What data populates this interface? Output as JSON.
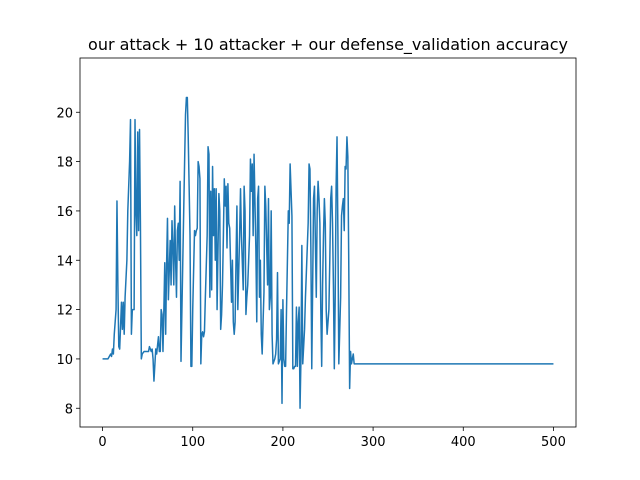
{
  "chart_data": {
    "type": "line",
    "title": "our attack + 10 attacker + our defense_validation accuracy",
    "x": [
      0,
      3,
      6,
      9,
      10,
      11,
      12,
      13,
      15,
      16,
      17,
      18,
      19,
      21,
      22,
      23,
      24,
      25,
      27,
      28,
      30,
      31,
      32,
      33,
      35,
      36,
      37,
      38,
      39,
      40,
      41,
      42,
      43,
      44,
      46,
      49,
      51,
      52,
      54,
      55,
      56,
      57,
      59,
      60,
      62,
      63,
      64,
      65,
      66,
      67,
      68,
      69,
      70,
      71,
      72,
      73,
      75,
      76,
      77,
      78,
      79,
      80,
      81,
      82,
      83,
      84,
      85,
      86,
      87,
      89,
      90,
      91,
      92,
      93,
      94,
      95,
      96,
      97,
      98,
      99,
      100,
      102,
      103,
      104,
      105,
      106,
      107,
      108,
      109,
      110,
      111,
      112,
      113,
      114,
      116,
      117,
      118,
      119,
      120,
      121,
      122,
      123,
      124,
      125,
      126,
      127,
      129,
      130,
      131,
      132,
      133,
      134,
      135,
      136,
      137,
      138,
      139,
      140,
      141,
      143,
      144,
      145,
      146,
      147,
      148,
      149,
      150,
      151,
      152,
      153,
      154,
      156,
      157,
      158,
      159,
      160,
      161,
      162,
      163,
      164,
      165,
      166,
      167,
      168,
      170,
      171,
      172,
      173,
      174,
      175,
      176,
      177,
      178,
      179,
      180,
      181,
      183,
      184,
      185,
      186,
      187,
      188,
      189,
      190,
      191,
      192,
      193,
      194,
      195,
      197,
      198,
      199,
      200,
      201,
      202,
      203,
      204,
      205,
      206,
      207,
      208,
      210,
      211,
      212,
      213,
      214,
      215,
      216,
      217,
      218,
      219,
      220,
      221,
      222,
      224,
      225,
      226,
      227,
      228,
      229,
      230,
      231,
      232,
      233,
      234,
      235,
      237,
      238,
      239,
      240,
      241,
      242,
      243,
      244,
      245,
      246,
      247,
      248,
      249,
      251,
      252,
      253,
      254,
      255,
      256,
      257,
      258,
      259,
      260,
      261,
      262,
      264,
      265,
      266,
      267,
      268,
      269,
      270,
      271,
      272,
      273,
      274,
      275,
      276,
      278,
      279,
      281,
      500
    ],
    "series": [
      {
        "color": "#1f77b4",
        "values": [
          10,
          10,
          10,
          10.2,
          10.1,
          10.4,
          10.2,
          11,
          12,
          16.4,
          13,
          10.5,
          10.4,
          12.3,
          11.2,
          12.3,
          11,
          12.5,
          14,
          16,
          18,
          19.7,
          11,
          12,
          12,
          19.7,
          16,
          15,
          19.2,
          15.2,
          19.3,
          15.5,
          10,
          10.2,
          10.3,
          10.3,
          10.3,
          10.5,
          10.3,
          10.4,
          10,
          9.1,
          10.4,
          10.2,
          10.9,
          10.3,
          10.3,
          12,
          11.8,
          10.3,
          12,
          13.9,
          11,
          13.8,
          15.7,
          12.4,
          14.8,
          13,
          15.6,
          14.5,
          13,
          16.2,
          14,
          12.5,
          15.2,
          15.5,
          14,
          17.2,
          9.9,
          14,
          16,
          18,
          19.9,
          20.6,
          20.6,
          19,
          17,
          15,
          9.7,
          9.7,
          12,
          15.2,
          15,
          15.2,
          15.3,
          18,
          17.8,
          17.3,
          9.8,
          11,
          11.1,
          10.9,
          11.1,
          12.5,
          15,
          18.6,
          18.3,
          12.5,
          16.8,
          12.8,
          17.8,
          15,
          16.9,
          14,
          16.9,
          12,
          16.7,
          16,
          11.2,
          11.8,
          13,
          15,
          17.3,
          16.2,
          17,
          14.5,
          17.1,
          15.5,
          15.3,
          12.3,
          14,
          11.5,
          11,
          11.5,
          14,
          16.2,
          12,
          13.5,
          15,
          16.9,
          15,
          12.8,
          17,
          16,
          11.8,
          12.5,
          13,
          14,
          15,
          18.1,
          16.8,
          17.9,
          15,
          18.3,
          14.5,
          11.5,
          16.5,
          17,
          12.5,
          14,
          11,
          10.2,
          11.5,
          12.7,
          17,
          16.2,
          13,
          16.5,
          12,
          12.5,
          16,
          11,
          9.8,
          9.9,
          10,
          10.2,
          10.8,
          13.5,
          9.8,
          10,
          12,
          8.2,
          12.4,
          10,
          9.7,
          9.7,
          12,
          14,
          16,
          15.5,
          17.9,
          15.8,
          9.6,
          9.6,
          9.7,
          9.7,
          12.1,
          9.7,
          11.5,
          12.1,
          8,
          10,
          14.6,
          9.8,
          11.2,
          12.5,
          13.5,
          14.5,
          15.5,
          17.9,
          17.7,
          14.5,
          9.6,
          13,
          16.5,
          17,
          12.5,
          16,
          17.2,
          16.5,
          15.5,
          12,
          9.7,
          13,
          15,
          16.5,
          15.5,
          12,
          11,
          12,
          14,
          16.5,
          17,
          15.5,
          13,
          9.6,
          12.5,
          17,
          19,
          15,
          9.8,
          12.5,
          15.8,
          16.2,
          16.5,
          15.2,
          17.8,
          17.7,
          19,
          18.2,
          14,
          8.8,
          10.3,
          9.8,
          10.2,
          9.8,
          9.8,
          9.8
        ]
      }
    ],
    "xlim": [
      -25,
      525
    ],
    "ylim": [
      7.24,
      22.2
    ],
    "xticks": [
      0,
      100,
      200,
      300,
      400,
      500
    ],
    "yticks": [
      8,
      10,
      12,
      14,
      16,
      18,
      20
    ],
    "grid": false
  }
}
